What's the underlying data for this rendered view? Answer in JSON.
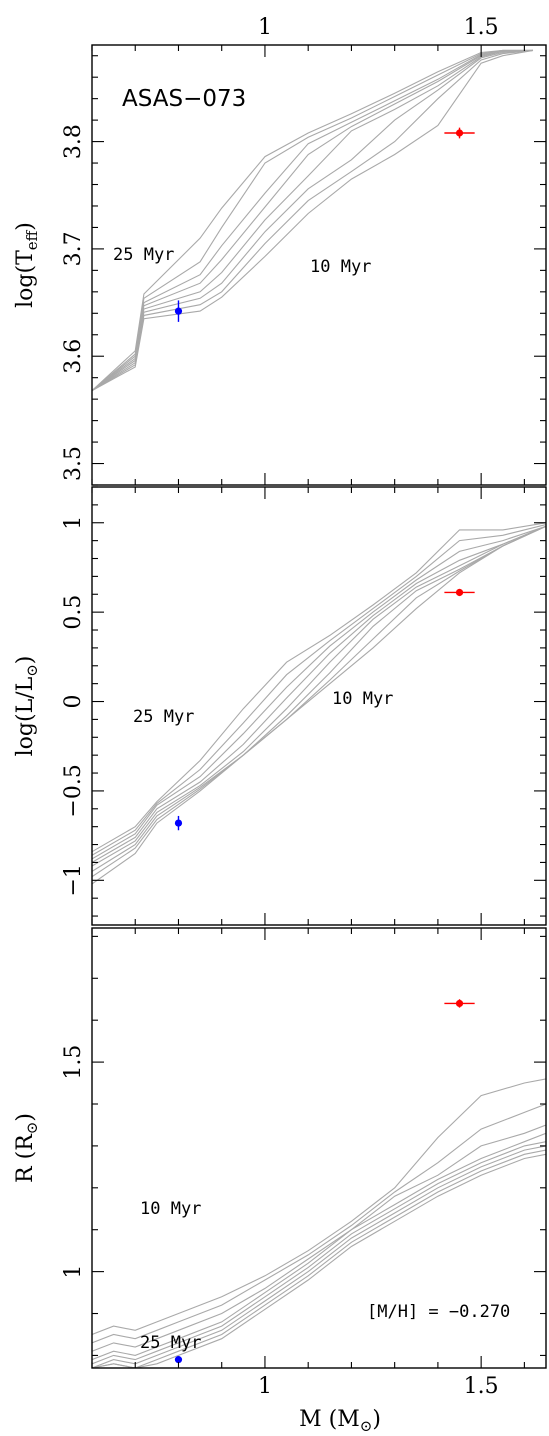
{
  "figure": {
    "top_axis_ticks": [
      "1",
      "1.5"
    ]
  },
  "chart_data": [
    {
      "type": "line",
      "panel": "top",
      "object_label": "ASAS−073",
      "ylabel": "log(T<sub>eff</sub>)",
      "xlim": [
        0.6,
        1.65
      ],
      "ylim": [
        3.48,
        3.89
      ],
      "ytick_labels": [
        3.5,
        3.6,
        3.7,
        3.8
      ],
      "annotations": [
        "25 Myr",
        "10 Myr"
      ],
      "isochrone_color": "#a9a9a9",
      "isochrones": [
        {
          "x": [
            0.6,
            0.7,
            0.72,
            0.85,
            0.9,
            1.0,
            1.1,
            1.2,
            1.3,
            1.4,
            1.5,
            1.55,
            1.62
          ],
          "y": [
            3.568,
            3.59,
            3.635,
            3.642,
            3.655,
            3.693,
            3.733,
            3.765,
            3.788,
            3.815,
            3.873,
            3.88,
            3.885
          ]
        },
        {
          "x": [
            0.6,
            0.7,
            0.72,
            0.85,
            0.9,
            1.0,
            1.1,
            1.2,
            1.3,
            1.4,
            1.5,
            1.55,
            1.62
          ],
          "y": [
            3.568,
            3.592,
            3.638,
            3.648,
            3.66,
            3.705,
            3.745,
            3.772,
            3.8,
            3.84,
            3.876,
            3.882,
            3.885
          ]
        },
        {
          "x": [
            0.6,
            0.7,
            0.72,
            0.85,
            0.9,
            1.0,
            1.1,
            1.2,
            1.3,
            1.4,
            1.5,
            1.55,
            1.62
          ],
          "y": [
            3.568,
            3.594,
            3.641,
            3.654,
            3.668,
            3.716,
            3.756,
            3.783,
            3.82,
            3.848,
            3.878,
            3.883,
            3.885
          ]
        },
        {
          "x": [
            0.6,
            0.7,
            0.72,
            0.85,
            0.9,
            1.0,
            1.1,
            1.2,
            1.3,
            1.4,
            1.5,
            1.55,
            1.62
          ],
          "y": [
            3.568,
            3.596,
            3.644,
            3.66,
            3.678,
            3.727,
            3.768,
            3.81,
            3.83,
            3.852,
            3.879,
            3.884,
            3.885
          ]
        },
        {
          "x": [
            0.6,
            0.7,
            0.72,
            0.85,
            0.9,
            1.0,
            1.1,
            1.2,
            1.3,
            1.4,
            1.5,
            1.55,
            1.62
          ],
          "y": [
            3.568,
            3.598,
            3.647,
            3.668,
            3.69,
            3.739,
            3.788,
            3.814,
            3.835,
            3.856,
            3.88,
            3.884,
            3.885
          ]
        },
        {
          "x": [
            0.6,
            0.7,
            0.72,
            0.85,
            0.9,
            1.0,
            1.1,
            1.2,
            1.3,
            1.4,
            1.5,
            1.55,
            1.62
          ],
          "y": [
            3.568,
            3.6,
            3.65,
            3.676,
            3.703,
            3.752,
            3.798,
            3.818,
            3.838,
            3.858,
            3.881,
            3.885,
            3.885
          ]
        },
        {
          "x": [
            0.6,
            0.7,
            0.72,
            0.85,
            0.9,
            1.0,
            1.1,
            1.2,
            1.3,
            1.4,
            1.5,
            1.55,
            1.62
          ],
          "y": [
            3.568,
            3.602,
            3.654,
            3.688,
            3.72,
            3.78,
            3.804,
            3.822,
            3.842,
            3.862,
            3.882,
            3.885,
            3.885
          ]
        },
        {
          "x": [
            0.6,
            0.7,
            0.72,
            0.85,
            0.9,
            1.0,
            1.1,
            1.2,
            1.3,
            1.4,
            1.5,
            1.55,
            1.62
          ],
          "y": [
            3.568,
            3.605,
            3.658,
            3.71,
            3.738,
            3.786,
            3.808,
            3.826,
            3.845,
            3.865,
            3.883,
            3.885,
            3.885
          ]
        }
      ],
      "points": [
        {
          "x": 0.8,
          "y": 3.642,
          "xerr": 0.0,
          "yerr": 0.01,
          "color": "#0000ff"
        },
        {
          "x": 1.45,
          "y": 3.808,
          "xerr": 0.035,
          "yerr": 0.005,
          "color": "#ff0000"
        }
      ]
    },
    {
      "type": "line",
      "panel": "middle",
      "ylabel": "log(L/L<sub>⊙</sub>)",
      "xlim": [
        0.6,
        1.65
      ],
      "ylim": [
        -1.25,
        1.2
      ],
      "ytick_labels": [
        -1,
        -0.5,
        0,
        0.5,
        1
      ],
      "ytick_text": [
        "−1",
        "−0.5",
        "0",
        "0.5",
        "1"
      ],
      "annotations": [
        "25 Myr",
        "10 Myr"
      ],
      "isochrone_color": "#a9a9a9",
      "isochrones": [
        {
          "x": [
            0.6,
            0.7,
            0.75,
            0.85,
            0.95,
            1.05,
            1.15,
            1.25,
            1.35,
            1.45,
            1.55,
            1.65
          ],
          "y": [
            -1.02,
            -0.85,
            -0.68,
            -0.5,
            -0.3,
            -0.1,
            0.1,
            0.3,
            0.52,
            0.72,
            0.87,
            0.98
          ]
        },
        {
          "x": [
            0.6,
            0.7,
            0.75,
            0.85,
            0.95,
            1.05,
            1.15,
            1.25,
            1.35,
            1.45,
            1.55,
            1.65
          ],
          "y": [
            -0.98,
            -0.82,
            -0.66,
            -0.49,
            -0.3,
            -0.1,
            0.12,
            0.35,
            0.58,
            0.73,
            0.87,
            0.98
          ]
        },
        {
          "x": [
            0.6,
            0.7,
            0.75,
            0.85,
            0.95,
            1.05,
            1.15,
            1.25,
            1.35,
            1.45,
            1.55,
            1.65
          ],
          "y": [
            -0.95,
            -0.8,
            -0.64,
            -0.48,
            -0.3,
            -0.08,
            0.16,
            0.42,
            0.62,
            0.74,
            0.87,
            0.98
          ]
        },
        {
          "x": [
            0.6,
            0.7,
            0.75,
            0.85,
            0.95,
            1.05,
            1.15,
            1.25,
            1.35,
            1.45,
            1.55,
            1.65
          ],
          "y": [
            -0.92,
            -0.78,
            -0.62,
            -0.47,
            -0.28,
            -0.04,
            0.22,
            0.46,
            0.64,
            0.76,
            0.88,
            0.98
          ]
        },
        {
          "x": [
            0.6,
            0.7,
            0.75,
            0.85,
            0.95,
            1.05,
            1.15,
            1.25,
            1.35,
            1.45,
            1.55,
            1.65
          ],
          "y": [
            -0.9,
            -0.76,
            -0.6,
            -0.45,
            -0.24,
            0.02,
            0.27,
            0.48,
            0.66,
            0.79,
            0.88,
            0.98
          ]
        },
        {
          "x": [
            0.6,
            0.7,
            0.75,
            0.85,
            0.95,
            1.05,
            1.15,
            1.25,
            1.35,
            1.45,
            1.55,
            1.65
          ],
          "y": [
            -0.88,
            -0.74,
            -0.58,
            -0.42,
            -0.18,
            0.08,
            0.31,
            0.5,
            0.68,
            0.84,
            0.9,
            0.98
          ]
        },
        {
          "x": [
            0.6,
            0.7,
            0.75,
            0.85,
            0.95,
            1.05,
            1.15,
            1.25,
            1.35,
            1.45,
            1.55,
            1.65
          ],
          "y": [
            -0.86,
            -0.72,
            -0.57,
            -0.38,
            -0.12,
            0.15,
            0.34,
            0.52,
            0.7,
            0.9,
            0.93,
            0.99
          ]
        },
        {
          "x": [
            0.6,
            0.7,
            0.75,
            0.85,
            0.95,
            1.05,
            1.15,
            1.25,
            1.35,
            1.45,
            1.55,
            1.65
          ],
          "y": [
            -0.84,
            -0.7,
            -0.56,
            -0.33,
            -0.04,
            0.22,
            0.37,
            0.54,
            0.72,
            0.96,
            0.96,
            1.0
          ]
        }
      ],
      "points": [
        {
          "x": 0.8,
          "y": -0.68,
          "xerr": 0.0,
          "yerr": 0.04,
          "color": "#0000ff"
        },
        {
          "x": 1.45,
          "y": 0.61,
          "xerr": 0.035,
          "yerr": 0.02,
          "color": "#ff0000"
        }
      ]
    },
    {
      "type": "line",
      "panel": "bottom",
      "xlabel": "M (M<sub>⊙</sub>)",
      "ylabel": "R (R<sub>⊙</sub>)",
      "xlim": [
        0.6,
        1.65
      ],
      "ylim": [
        0.77,
        1.82
      ],
      "xtick_labels": [
        1,
        1.5
      ],
      "ytick_labels": [
        1,
        1.5
      ],
      "annotations": [
        "10 Myr",
        "25 Myr",
        "[M/H] = −0.270"
      ],
      "isochrone_color": "#a9a9a9",
      "isochrones": [
        {
          "x": [
            0.6,
            0.65,
            0.7,
            0.75,
            0.8,
            0.9,
            1.0,
            1.1,
            1.2,
            1.3,
            1.4,
            1.5,
            1.6,
            1.65
          ],
          "y": [
            0.85,
            0.87,
            0.86,
            0.88,
            0.9,
            0.94,
            0.99,
            1.05,
            1.12,
            1.2,
            1.32,
            1.42,
            1.45,
            1.46
          ]
        },
        {
          "x": [
            0.6,
            0.65,
            0.7,
            0.75,
            0.8,
            0.9,
            1.0,
            1.1,
            1.2,
            1.3,
            1.4,
            1.5,
            1.6,
            1.65
          ],
          "y": [
            0.83,
            0.85,
            0.84,
            0.86,
            0.88,
            0.92,
            0.98,
            1.04,
            1.11,
            1.19,
            1.26,
            1.34,
            1.38,
            1.4
          ]
        },
        {
          "x": [
            0.6,
            0.65,
            0.7,
            0.75,
            0.8,
            0.9,
            1.0,
            1.1,
            1.2,
            1.3,
            1.4,
            1.5,
            1.6,
            1.65
          ],
          "y": [
            0.81,
            0.83,
            0.82,
            0.84,
            0.86,
            0.9,
            0.96,
            1.03,
            1.1,
            1.18,
            1.23,
            1.3,
            1.33,
            1.35
          ]
        },
        {
          "x": [
            0.6,
            0.65,
            0.7,
            0.75,
            0.8,
            0.9,
            1.0,
            1.1,
            1.2,
            1.3,
            1.4,
            1.5,
            1.6,
            1.65
          ],
          "y": [
            0.79,
            0.81,
            0.8,
            0.82,
            0.84,
            0.88,
            0.95,
            1.02,
            1.1,
            1.16,
            1.22,
            1.27,
            1.31,
            1.33
          ]
        },
        {
          "x": [
            0.6,
            0.65,
            0.7,
            0.75,
            0.8,
            0.9,
            1.0,
            1.1,
            1.2,
            1.3,
            1.4,
            1.5,
            1.6,
            1.65
          ],
          "y": [
            0.78,
            0.8,
            0.79,
            0.81,
            0.83,
            0.87,
            0.94,
            1.01,
            1.09,
            1.15,
            1.21,
            1.26,
            1.3,
            1.31
          ]
        },
        {
          "x": [
            0.6,
            0.65,
            0.7,
            0.75,
            0.8,
            0.9,
            1.0,
            1.1,
            1.2,
            1.3,
            1.4,
            1.5,
            1.6,
            1.65
          ],
          "y": [
            0.77,
            0.79,
            0.78,
            0.8,
            0.82,
            0.86,
            0.93,
            1.0,
            1.08,
            1.14,
            1.2,
            1.25,
            1.29,
            1.3
          ]
        },
        {
          "x": [
            0.6,
            0.65,
            0.7,
            0.75,
            0.8,
            0.9,
            1.0,
            1.1,
            1.2,
            1.3,
            1.4,
            1.5,
            1.6,
            1.65
          ],
          "y": [
            0.77,
            0.78,
            0.77,
            0.79,
            0.81,
            0.85,
            0.92,
            0.99,
            1.07,
            1.13,
            1.19,
            1.24,
            1.28,
            1.29
          ]
        },
        {
          "x": [
            0.6,
            0.65,
            0.7,
            0.75,
            0.8,
            0.9,
            1.0,
            1.1,
            1.2,
            1.3,
            1.4,
            1.5,
            1.6,
            1.65
          ],
          "y": [
            0.77,
            0.78,
            0.77,
            0.78,
            0.8,
            0.84,
            0.91,
            0.98,
            1.06,
            1.12,
            1.18,
            1.23,
            1.27,
            1.28
          ]
        }
      ],
      "points": [
        {
          "x": 0.8,
          "y": 0.79,
          "xerr": 0.0,
          "yerr": 0.005,
          "color": "#0000ff"
        },
        {
          "x": 1.45,
          "y": 1.64,
          "xerr": 0.035,
          "yerr": 0.01,
          "color": "#ff0000"
        }
      ]
    }
  ]
}
